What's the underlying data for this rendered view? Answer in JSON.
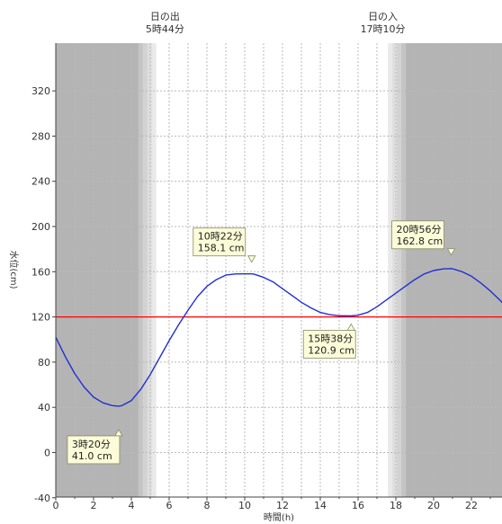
{
  "chart_data": {
    "type": "line",
    "xlabel": "時間(h)",
    "ylabel": "水位(cm)",
    "xlim": [
      0,
      24
    ],
    "ylim": [
      -40,
      360
    ],
    "x_ticks": [
      0,
      2,
      4,
      6,
      8,
      10,
      12,
      14,
      16,
      18,
      20,
      22
    ],
    "y_ticks": [
      -40,
      0,
      40,
      80,
      120,
      160,
      200,
      240,
      280,
      320
    ],
    "grid": true,
    "reference_line": {
      "value": 120,
      "color": "#ff0000"
    },
    "series": [
      {
        "color": "#1f2fd6",
        "x": [
          0,
          0.5,
          1,
          1.5,
          2,
          2.5,
          3,
          3.33,
          3.5,
          4,
          4.5,
          5,
          5.5,
          6,
          6.5,
          7,
          7.5,
          8,
          8.5,
          9,
          9.5,
          10,
          10.37,
          10.5,
          11,
          11.5,
          12,
          12.5,
          13,
          13.5,
          14,
          14.5,
          15,
          15.63,
          16,
          16.5,
          17,
          17.5,
          18,
          18.5,
          19,
          19.5,
          20,
          20.5,
          20.93,
          21,
          21.5,
          22,
          22.5,
          23,
          23.5,
          24
        ],
        "values": [
          102,
          85,
          70,
          58,
          49,
          44,
          41.5,
          41.0,
          41.5,
          46,
          56,
          69,
          84,
          99,
          113,
          126,
          138,
          147,
          153,
          157,
          158,
          158.1,
          158.1,
          157.8,
          155,
          151,
          145,
          139,
          133,
          128,
          124,
          122,
          121,
          120.9,
          121.5,
          124,
          129,
          135,
          141,
          147,
          153,
          158,
          161,
          162.5,
          162.8,
          162.6,
          160,
          156,
          150,
          143,
          135,
          126
        ]
      }
    ],
    "sunrise": {
      "label": "日の出",
      "time": "5時44分",
      "hours": 5.73
    },
    "sunset": {
      "label": "日の入",
      "time": "17時10分",
      "hours": 17.17
    },
    "annotations": [
      {
        "x": 3.33,
        "y": 41.0,
        "time": "3時20分",
        "value": "41.0 cm"
      },
      {
        "x": 10.37,
        "y": 158.1,
        "time": "10時22分",
        "value": "158.1 cm"
      },
      {
        "x": 15.63,
        "y": 120.9,
        "time": "15時38分",
        "value": "120.9 cm"
      },
      {
        "x": 20.93,
        "y": 162.8,
        "time": "20時56分",
        "value": "162.8 cm"
      }
    ],
    "colors": {
      "night": "#b4b4b4",
      "twilight": [
        "#c4c4c4",
        "#d2d2d2",
        "#dedede",
        "#e9e9e9"
      ],
      "day": "#ffffff",
      "grid": "#b9b9b9",
      "annotation_fill": "#fcfcd8",
      "annotation_stroke": "#8a8a6a"
    }
  }
}
